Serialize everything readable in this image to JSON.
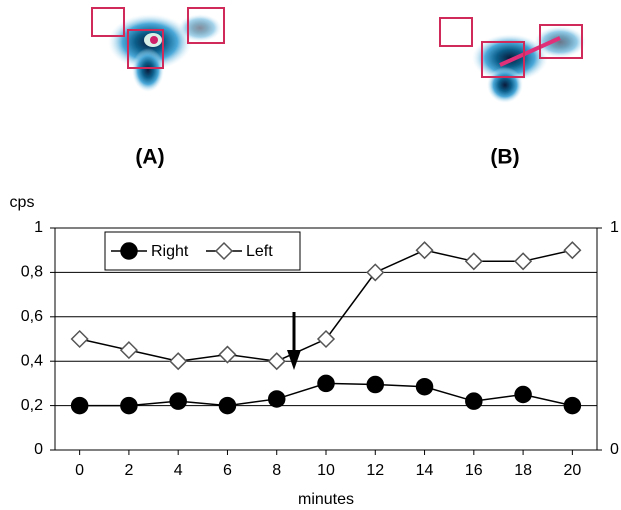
{
  "panels": [
    {
      "label": "(A)"
    },
    {
      "label": "(B)"
    }
  ],
  "chart_data": {
    "type": "line",
    "y_label": "cps",
    "x_label": "minutes",
    "x": [
      0,
      2,
      4,
      6,
      8,
      10,
      12,
      14,
      16,
      18,
      20
    ],
    "series": [
      {
        "name": "Right",
        "color": "#000000",
        "marker": "circle",
        "marker_fill": "#000000",
        "values": [
          0.2,
          0.2,
          0.22,
          0.2,
          0.23,
          0.3,
          0.295,
          0.285,
          0.22,
          0.25,
          0.2
        ]
      },
      {
        "name": "Left",
        "color": "#000000",
        "marker": "diamond",
        "marker_fill": "#ffffff",
        "values": [
          0.5,
          0.45,
          0.4,
          0.43,
          0.4,
          0.5,
          0.8,
          0.9,
          0.85,
          0.85,
          0.9
        ]
      }
    ],
    "xlim": [
      -1,
      21
    ],
    "xticks": [
      0,
      2,
      4,
      6,
      8,
      10,
      12,
      14,
      16,
      18,
      20
    ],
    "ylim": [
      0,
      1
    ],
    "yticks": [
      0,
      {
        "value": 0.2,
        "label": "0,2"
      },
      {
        "value": 0.4,
        "label": "0,4"
      },
      {
        "value": 0.6,
        "label": "0,6"
      },
      {
        "value": 0.8,
        "label": "0,8"
      },
      1
    ],
    "y2lim": [
      0,
      1
    ],
    "y2ticks": [
      0,
      1
    ],
    "grid": true,
    "legend": "upper left"
  }
}
